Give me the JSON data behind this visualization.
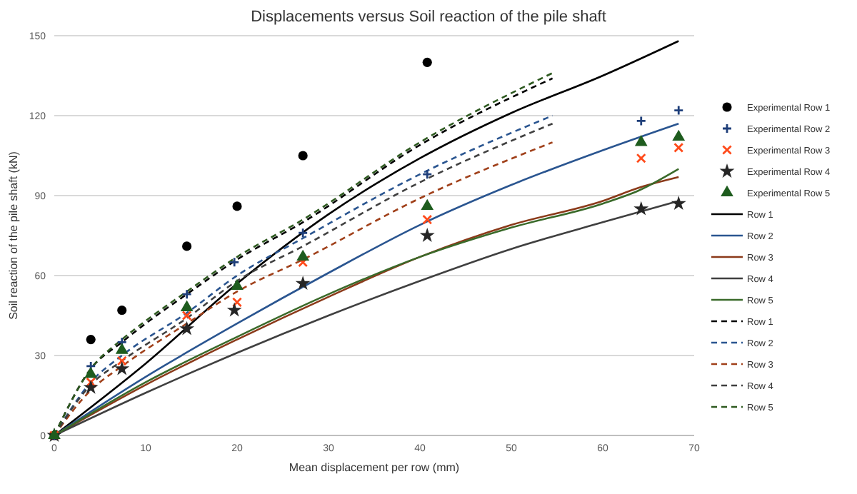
{
  "chart_data": {
    "type": "line",
    "title": "Displacements versus Soil reaction of the pile shaft",
    "xlabel": "Mean displacement per row (mm)",
    "ylabel": "Soil reaction of the pile shaft (kN)",
    "xlim": [
      0,
      70
    ],
    "xticks": [
      0,
      10,
      20,
      30,
      40,
      50,
      60,
      70
    ],
    "ylim": [
      0,
      150
    ],
    "yticks": [
      0,
      30,
      60,
      90,
      120,
      150
    ],
    "grid": "y",
    "legend": "right",
    "series": [
      {
        "name": "Experimental Row 1",
        "type": "scatter",
        "marker": "circle",
        "color": "#000000",
        "x": [
          0,
          4,
          7.4,
          14.5,
          20,
          27.2,
          40.8
        ],
        "values": [
          0,
          36,
          47,
          71,
          86,
          105,
          140
        ]
      },
      {
        "name": "Experimental Row 2",
        "type": "scatter",
        "marker": "plus",
        "color": "#1f3f7a",
        "x": [
          0,
          4,
          7.4,
          14.5,
          19.7,
          27.2,
          40.8,
          64.2,
          68.3
        ],
        "values": [
          0,
          26,
          35,
          53,
          65,
          76,
          98,
          118,
          122
        ]
      },
      {
        "name": "Experimental Row 3",
        "type": "scatter",
        "marker": "cross",
        "color": "#ff4a1a",
        "x": [
          0,
          4,
          7.4,
          14.5,
          20,
          27.2,
          40.8,
          64.2,
          68.3
        ],
        "values": [
          0,
          20,
          28,
          45,
          50,
          65,
          81,
          104,
          108
        ]
      },
      {
        "name": "Experimental Row 4",
        "type": "scatter",
        "marker": "star",
        "color": "#262626",
        "x": [
          0,
          4,
          7.4,
          14.5,
          19.7,
          27.2,
          40.8,
          64.2,
          68.3
        ],
        "values": [
          0,
          18,
          25,
          40,
          47,
          57,
          75,
          85,
          87
        ]
      },
      {
        "name": "Experimental Row 5",
        "type": "scatter",
        "marker": "triangle",
        "color": "#1e5c1e",
        "x": [
          0,
          4,
          7.4,
          14.5,
          20,
          27.2,
          40.8,
          64.2,
          68.3
        ],
        "values": [
          0,
          23,
          32,
          48,
          56,
          67,
          86,
          110,
          112
        ]
      },
      {
        "name": "Row 1",
        "type": "line",
        "line_style": "solid",
        "color": "#000000",
        "x": [
          0,
          10,
          20,
          30,
          40,
          50,
          60,
          68.3
        ],
        "values": [
          0,
          27,
          57,
          83,
          104,
          121,
          135,
          148
        ]
      },
      {
        "name": "Row 2",
        "type": "line",
        "line_style": "solid",
        "color": "#2a5590",
        "x": [
          0,
          10,
          20,
          30,
          40,
          50,
          60,
          68.3
        ],
        "values": [
          0,
          22,
          42,
          61,
          79,
          94,
          107,
          117
        ]
      },
      {
        "name": "Row 3",
        "type": "line",
        "line_style": "solid",
        "color": "#8b3a1a",
        "x": [
          0,
          10,
          20,
          30,
          40,
          50,
          60,
          64,
          68.3
        ],
        "values": [
          0,
          19,
          36,
          52,
          67,
          79,
          88,
          93,
          97
        ]
      },
      {
        "name": "Row 4",
        "type": "line",
        "line_style": "solid",
        "color": "#404040",
        "x": [
          0,
          10,
          20,
          30,
          40,
          50,
          60,
          68.3
        ],
        "values": [
          0,
          16,
          31,
          45,
          58,
          70,
          80,
          88
        ]
      },
      {
        "name": "Row 5",
        "type": "line",
        "line_style": "solid",
        "color": "#3a6a2a",
        "x": [
          0,
          10,
          20,
          30,
          40,
          50,
          60,
          64,
          68.3
        ],
        "values": [
          0,
          20,
          37,
          53,
          67,
          78,
          87,
          92,
          100
        ]
      },
      {
        "name": "Row 1",
        "type": "line",
        "line_style": "dashed",
        "color": "#000000",
        "x": [
          0,
          4,
          7.4,
          10,
          14.5,
          20,
          27.2,
          40,
          54.5
        ],
        "values": [
          0,
          25,
          35,
          42,
          53,
          66,
          80,
          109,
          134
        ]
      },
      {
        "name": "Row 2",
        "type": "line",
        "line_style": "dashed",
        "color": "#2a5590",
        "x": [
          0,
          4,
          7.4,
          14.5,
          20,
          27.2,
          40,
          54.5
        ],
        "values": [
          0,
          20,
          30,
          46,
          60,
          74,
          98,
          120
        ]
      },
      {
        "name": "Row 3",
        "type": "line",
        "line_style": "dashed",
        "color": "#a0401a",
        "x": [
          0,
          4,
          7.4,
          14.5,
          20,
          27.2,
          40,
          54.5
        ],
        "values": [
          0,
          17,
          26,
          42,
          54,
          66,
          89,
          110
        ]
      },
      {
        "name": "Row 4",
        "type": "line",
        "line_style": "dashed",
        "color": "#404040",
        "x": [
          0,
          4,
          7.4,
          14.5,
          20,
          27.2,
          40,
          54.5
        ],
        "values": [
          0,
          19,
          28,
          44,
          58,
          71,
          95,
          117
        ]
      },
      {
        "name": "Row 5",
        "type": "line",
        "line_style": "dashed",
        "color": "#2e5a20",
        "x": [
          0,
          4,
          7.4,
          10,
          14.5,
          20,
          27.2,
          40,
          54.5
        ],
        "values": [
          0,
          25,
          36,
          43,
          54,
          67,
          81,
          110,
          136
        ]
      }
    ]
  }
}
